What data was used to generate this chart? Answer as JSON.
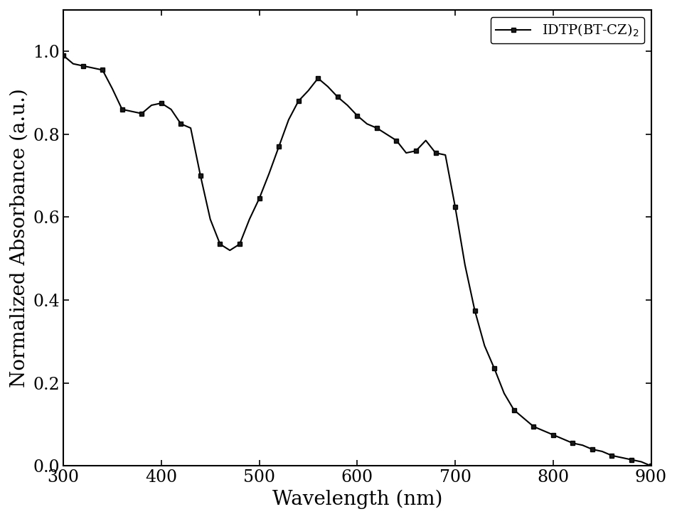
{
  "x": [
    300,
    310,
    320,
    330,
    340,
    350,
    360,
    370,
    380,
    390,
    400,
    410,
    420,
    430,
    440,
    450,
    460,
    470,
    480,
    490,
    500,
    510,
    520,
    530,
    540,
    550,
    560,
    570,
    580,
    590,
    600,
    610,
    620,
    630,
    640,
    650,
    660,
    670,
    680,
    690,
    700,
    710,
    720,
    730,
    740,
    750,
    760,
    770,
    780,
    790,
    800,
    810,
    820,
    830,
    840,
    850,
    860,
    870,
    880,
    890,
    900
  ],
  "y": [
    0.99,
    0.97,
    0.965,
    0.96,
    0.955,
    0.91,
    0.86,
    0.855,
    0.85,
    0.87,
    0.875,
    0.86,
    0.825,
    0.815,
    0.7,
    0.595,
    0.535,
    0.52,
    0.535,
    0.595,
    0.645,
    0.705,
    0.77,
    0.835,
    0.88,
    0.905,
    0.935,
    0.915,
    0.89,
    0.87,
    0.845,
    0.825,
    0.815,
    0.8,
    0.785,
    0.755,
    0.76,
    0.785,
    0.755,
    0.75,
    0.625,
    0.485,
    0.375,
    0.29,
    0.235,
    0.175,
    0.135,
    0.115,
    0.095,
    0.085,
    0.075,
    0.065,
    0.055,
    0.05,
    0.04,
    0.035,
    0.025,
    0.02,
    0.015,
    0.01,
    0.0
  ],
  "line_color": "#000000",
  "marker": "s",
  "marker_size": 5,
  "marker_facecolor": "#1a1a1a",
  "marker_edgecolor": "#000000",
  "line_width": 1.5,
  "xlabel": "Wavelength (nm)",
  "ylabel": "Normalized Absorbance (a.u.)",
  "xlim": [
    300,
    900
  ],
  "ylim": [
    0.0,
    1.1
  ],
  "xticks": [
    300,
    400,
    500,
    600,
    700,
    800,
    900
  ],
  "yticks": [
    0.0,
    0.2,
    0.4,
    0.6,
    0.8,
    1.0
  ],
  "legend_label": "IDTP(BT-CZ)$_2$",
  "legend_loc": "upper right",
  "label_fontsize": 20,
  "tick_fontsize": 17,
  "legend_fontsize": 14,
  "background_color": "#ffffff",
  "marker_every": 2
}
